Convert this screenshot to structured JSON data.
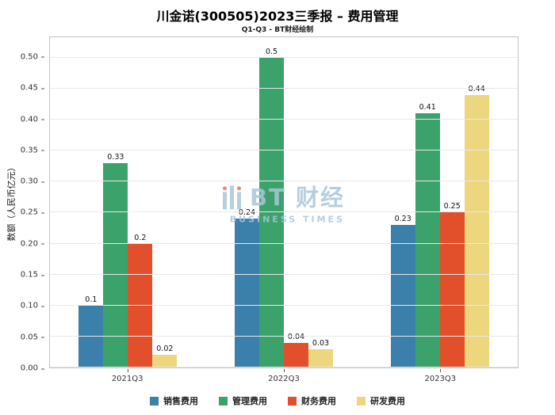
{
  "watermark": {
    "text": "BT 财经",
    "subtext": "BUSINESS TIMES"
  },
  "chart_data": {
    "type": "bar",
    "title": "川金诺(300505)2023三季报 – 费用管理",
    "subtitle": "Q1-Q3 - BT财经绘制",
    "ylabel": "数额（人民币亿元）",
    "categories": [
      "2021Q3",
      "2022Q3",
      "2023Q3"
    ],
    "series": [
      {
        "name": "销售费用",
        "color": "#3b80aa",
        "values": [
          0.1,
          0.24,
          0.23
        ]
      },
      {
        "name": "管理费用",
        "color": "#3ca26b",
        "values": [
          0.33,
          0.5,
          0.41
        ]
      },
      {
        "name": "财务费用",
        "color": "#e1502b",
        "values": [
          0.2,
          0.04,
          0.25
        ]
      },
      {
        "name": "研发费用",
        "color": "#ecd77f",
        "values": [
          0.02,
          0.03,
          0.44
        ]
      }
    ],
    "ylim": [
      0,
      0.533
    ],
    "yticks": [
      0,
      0.05,
      0.1,
      0.15,
      0.2,
      0.25,
      0.3,
      0.35,
      0.4,
      0.45,
      0.5
    ],
    "grid": true,
    "legend_position": "bottom"
  }
}
